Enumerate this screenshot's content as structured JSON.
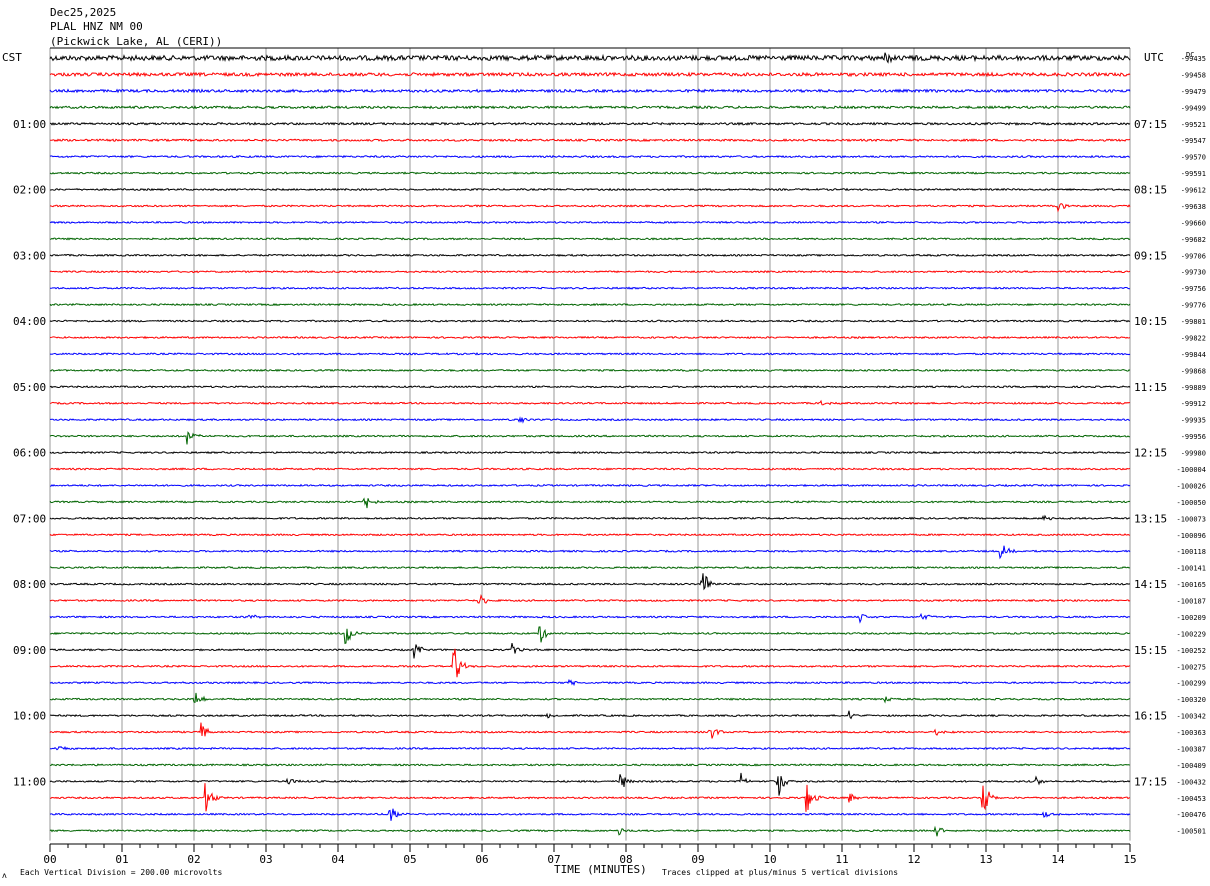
{
  "header": {
    "date": "Dec25,2025",
    "station": "PLAL HNZ NM 00",
    "location": "(Pickwick Lake, AL (CERI))"
  },
  "left_tz": "CST",
  "right_tz": "UTC",
  "dc_label": "DC",
  "footer": {
    "scale_note": "Each Vertical Division =  200.00 microvolts",
    "xlabel": "TIME (MINUTES)",
    "clip_note": "Traces clipped at plus/minus 5 vertical divisions"
  },
  "colors": {
    "trace_cycle": [
      "#000000",
      "#ff0000",
      "#0000ff",
      "#006400"
    ],
    "grid": "#808080"
  },
  "chart_data": {
    "type": "line",
    "title": "PLAL HNZ NM 00",
    "xlabel": "TIME (MINUTES)",
    "xlim": [
      0,
      15
    ],
    "x_ticks": [
      "00",
      "01",
      "02",
      "03",
      "04",
      "05",
      "06",
      "07",
      "08",
      "09",
      "10",
      "11",
      "12",
      "13",
      "14",
      "15"
    ],
    "trace_count": 48,
    "left_hour_labels": [
      "01:00",
      "02:00",
      "03:00",
      "04:00",
      "05:00",
      "06:00",
      "07:00",
      "08:00",
      "09:00",
      "10:00",
      "11:00"
    ],
    "right_hour_labels": [
      "07:15",
      "08:15",
      "09:15",
      "10:15",
      "11:15",
      "12:15",
      "13:15",
      "14:15",
      "15:15",
      "16:15",
      "17:15"
    ],
    "right_dc_values": [
      "-99435",
      "-99458",
      "-99479",
      "-99499",
      "-99521",
      "-99547",
      "-99570",
      "-99591",
      "-99612",
      "-99638",
      "-99660",
      "-99682",
      "-99706",
      "-99730",
      "-99756",
      "-99776",
      "-99801",
      "-99822",
      "-99844",
      "-99868",
      "-99889",
      "-99912",
      "-99935",
      "-99956",
      "-99980",
      "-100004",
      "-100026",
      "-100050",
      "-100073",
      "-100096",
      "-100118",
      "-100141",
      "-100165",
      "-100187",
      "-100209",
      "-100229",
      "-100252",
      "-100275",
      "-100299",
      "-100320",
      "-100342",
      "-100363",
      "-100387",
      "-100409",
      "-100432",
      "-100453",
      "-100476",
      "-100501"
    ],
    "noise_level": [
      3,
      2,
      1.6,
      1.4,
      1.3,
      1.2,
      1.1,
      1,
      1,
      1,
      1,
      1,
      1,
      1,
      1,
      1,
      1,
      1,
      1,
      1,
      1,
      1,
      1,
      1,
      1,
      1,
      1,
      1,
      1,
      1,
      1,
      1,
      1,
      1,
      1,
      1,
      1,
      1,
      1,
      1,
      1,
      1,
      1,
      1,
      1,
      1,
      1,
      1
    ],
    "events": [
      {
        "trace": 0,
        "minute": 11.6,
        "amp": 6
      },
      {
        "trace": 9,
        "minute": 14.0,
        "amp": 6
      },
      {
        "trace": 21,
        "minute": 10.7,
        "amp": 4
      },
      {
        "trace": 22,
        "minute": 6.5,
        "amp": 6
      },
      {
        "trace": 23,
        "minute": 1.9,
        "amp": 10
      },
      {
        "trace": 27,
        "minute": 4.35,
        "amp": 14
      },
      {
        "trace": 28,
        "minute": 13.8,
        "amp": 4
      },
      {
        "trace": 30,
        "minute": 13.2,
        "amp": 10
      },
      {
        "trace": 32,
        "minute": 9.05,
        "amp": 20
      },
      {
        "trace": 33,
        "minute": 5.95,
        "amp": 8
      },
      {
        "trace": 34,
        "minute": 2.75,
        "amp": 4
      },
      {
        "trace": 34,
        "minute": 11.25,
        "amp": 5
      },
      {
        "trace": 34,
        "minute": 12.1,
        "amp": 6
      },
      {
        "trace": 35,
        "minute": 4.1,
        "amp": 14
      },
      {
        "trace": 35,
        "minute": 6.8,
        "amp": 12
      },
      {
        "trace": 36,
        "minute": 5.05,
        "amp": 10
      },
      {
        "trace": 36,
        "minute": 6.4,
        "amp": 8
      },
      {
        "trace": 37,
        "minute": 5.6,
        "amp": 25
      },
      {
        "trace": 38,
        "minute": 7.2,
        "amp": 4
      },
      {
        "trace": 39,
        "minute": 2.0,
        "amp": 12
      },
      {
        "trace": 39,
        "minute": 11.6,
        "amp": 3
      },
      {
        "trace": 40,
        "minute": 6.9,
        "amp": 4
      },
      {
        "trace": 40,
        "minute": 11.1,
        "amp": 5
      },
      {
        "trace": 41,
        "minute": 2.1,
        "amp": 10
      },
      {
        "trace": 41,
        "minute": 9.15,
        "amp": 14
      },
      {
        "trace": 41,
        "minute": 12.3,
        "amp": 5
      },
      {
        "trace": 42,
        "minute": 0.1,
        "amp": 4
      },
      {
        "trace": 44,
        "minute": 3.3,
        "amp": 5
      },
      {
        "trace": 44,
        "minute": 7.9,
        "amp": 14
      },
      {
        "trace": 44,
        "minute": 9.6,
        "amp": 8
      },
      {
        "trace": 44,
        "minute": 10.1,
        "amp": 22
      },
      {
        "trace": 44,
        "minute": 13.7,
        "amp": 4
      },
      {
        "trace": 45,
        "minute": 2.15,
        "amp": 18
      },
      {
        "trace": 45,
        "minute": 10.5,
        "amp": 20
      },
      {
        "trace": 45,
        "minute": 11.1,
        "amp": 6
      },
      {
        "trace": 45,
        "minute": 12.95,
        "amp": 24
      },
      {
        "trace": 46,
        "minute": 4.7,
        "amp": 14
      },
      {
        "trace": 46,
        "minute": 13.8,
        "amp": 5
      },
      {
        "trace": 47,
        "minute": 7.9,
        "amp": 5
      },
      {
        "trace": 47,
        "minute": 12.3,
        "amp": 7
      }
    ]
  }
}
